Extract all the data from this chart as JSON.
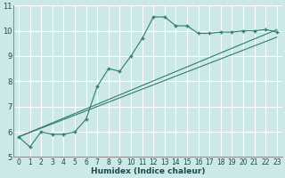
{
  "xlabel": "Humidex (Indice chaleur)",
  "background_color": "#cce8e8",
  "grid_color": "#ffffff",
  "line_color": "#2e7d6e",
  "xlim": [
    -0.5,
    23.5
  ],
  "ylim": [
    5,
    11
  ],
  "yticks": [
    5,
    6,
    7,
    8,
    9,
    10,
    11
  ],
  "xticks": [
    0,
    1,
    2,
    3,
    4,
    5,
    6,
    7,
    8,
    9,
    10,
    11,
    12,
    13,
    14,
    15,
    16,
    17,
    18,
    19,
    20,
    21,
    22,
    23
  ],
  "line1_x": [
    0,
    1,
    2,
    3,
    4,
    5,
    6,
    7,
    8,
    9,
    10,
    11,
    12,
    13,
    14,
    15,
    16,
    17,
    18,
    19,
    20,
    21,
    22,
    23
  ],
  "line1_y": [
    5.8,
    5.4,
    6.0,
    5.9,
    5.9,
    6.0,
    6.5,
    7.8,
    8.5,
    8.4,
    9.0,
    9.7,
    10.55,
    10.55,
    10.2,
    10.2,
    9.9,
    9.9,
    9.95,
    9.95,
    10.0,
    10.0,
    10.05,
    9.95
  ],
  "line2_x": [
    0,
    23
  ],
  "line2_y": [
    5.8,
    10.05
  ],
  "line3_x": [
    0,
    23
  ],
  "line3_y": [
    5.8,
    9.75
  ],
  "xlabel_fontsize": 6.5,
  "xlabel_fontweight": "bold",
  "tick_fontsize": 5.5
}
